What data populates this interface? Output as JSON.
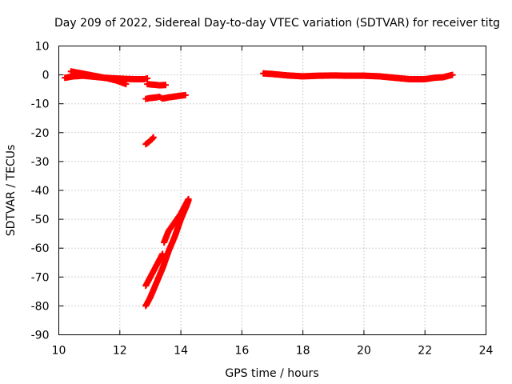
{
  "chart_data": {
    "type": "scatter",
    "title": "Day 209 of 2022, Sidereal Day-to-day VTEC variation (SDTVAR) for receiver titg",
    "xlabel": "GPS time / hours",
    "ylabel": "SDTVAR / TECUs",
    "xlim": [
      10,
      24
    ],
    "ylim": [
      -90,
      10
    ],
    "xticks": [
      10,
      12,
      14,
      16,
      18,
      20,
      22,
      24
    ],
    "yticks": [
      10,
      0,
      -10,
      -20,
      -30,
      -40,
      -50,
      -60,
      -70,
      -80,
      -90
    ],
    "grid": true,
    "legend": "none",
    "marker": "plus",
    "color": "#ff0000",
    "series": [
      {
        "points": [
          [
            10.2,
            -1.0
          ],
          [
            10.5,
            -0.5
          ],
          [
            10.8,
            -0.3
          ],
          [
            11.0,
            -0.5
          ],
          [
            11.3,
            -0.8
          ],
          [
            11.5,
            -1.0
          ],
          [
            11.8,
            -1.2
          ],
          [
            12.0,
            -1.3
          ],
          [
            12.2,
            -1.4
          ],
          [
            12.5,
            -1.5
          ],
          [
            12.8,
            -1.5
          ],
          [
            12.9,
            -1.2
          ]
        ]
      },
      {
        "points": [
          [
            10.4,
            1.2
          ],
          [
            10.7,
            0.6
          ],
          [
            11.0,
            0.0
          ],
          [
            11.3,
            -0.6
          ],
          [
            11.6,
            -1.2
          ],
          [
            11.9,
            -2.0
          ],
          [
            12.1,
            -2.8
          ],
          [
            12.2,
            -3.2
          ]
        ]
      },
      {
        "points": [
          [
            12.9,
            -3.2
          ],
          [
            13.1,
            -3.4
          ],
          [
            13.3,
            -3.6
          ],
          [
            13.5,
            -3.5
          ]
        ]
      },
      {
        "points": [
          [
            12.85,
            -8.3
          ],
          [
            13.0,
            -8.0
          ],
          [
            13.2,
            -7.8
          ],
          [
            13.3,
            -7.6
          ],
          [
            13.4,
            -8.2
          ],
          [
            13.6,
            -7.8
          ],
          [
            13.8,
            -7.5
          ],
          [
            14.0,
            -7.2
          ],
          [
            14.15,
            -7.0
          ]
        ]
      },
      {
        "points": [
          [
            12.85,
            -24.0
          ],
          [
            12.95,
            -23.2
          ],
          [
            13.05,
            -22.3
          ],
          [
            13.1,
            -21.6
          ]
        ]
      },
      {
        "points": [
          [
            12.85,
            -73.0
          ],
          [
            12.95,
            -71.0
          ],
          [
            13.1,
            -68.0
          ],
          [
            13.25,
            -65.0
          ],
          [
            13.4,
            -62.0
          ]
        ]
      },
      {
        "points": [
          [
            13.45,
            -58.0
          ],
          [
            13.6,
            -54.0
          ],
          [
            13.8,
            -51.0
          ],
          [
            14.0,
            -48.0
          ],
          [
            14.15,
            -45.0
          ],
          [
            14.25,
            -43.0
          ]
        ]
      },
      {
        "points": [
          [
            12.85,
            -80.0
          ],
          [
            13.0,
            -77.0
          ],
          [
            13.2,
            -72.0
          ],
          [
            13.4,
            -67.0
          ],
          [
            13.6,
            -61.0
          ],
          [
            13.8,
            -56.0
          ],
          [
            14.0,
            -50.0
          ],
          [
            14.2,
            -45.0
          ],
          [
            14.25,
            -43.5
          ]
        ]
      },
      {
        "points": [
          [
            16.7,
            0.5
          ],
          [
            17.0,
            0.3
          ],
          [
            17.5,
            -0.2
          ],
          [
            18.0,
            -0.5
          ],
          [
            18.5,
            -0.3
          ],
          [
            19.0,
            -0.2
          ],
          [
            19.5,
            -0.3
          ],
          [
            20.0,
            -0.3
          ],
          [
            20.5,
            -0.5
          ],
          [
            21.0,
            -1.0
          ],
          [
            21.5,
            -1.5
          ],
          [
            22.0,
            -1.5
          ],
          [
            22.3,
            -1.0
          ],
          [
            22.6,
            -0.8
          ],
          [
            22.9,
            0.0
          ]
        ]
      }
    ]
  }
}
